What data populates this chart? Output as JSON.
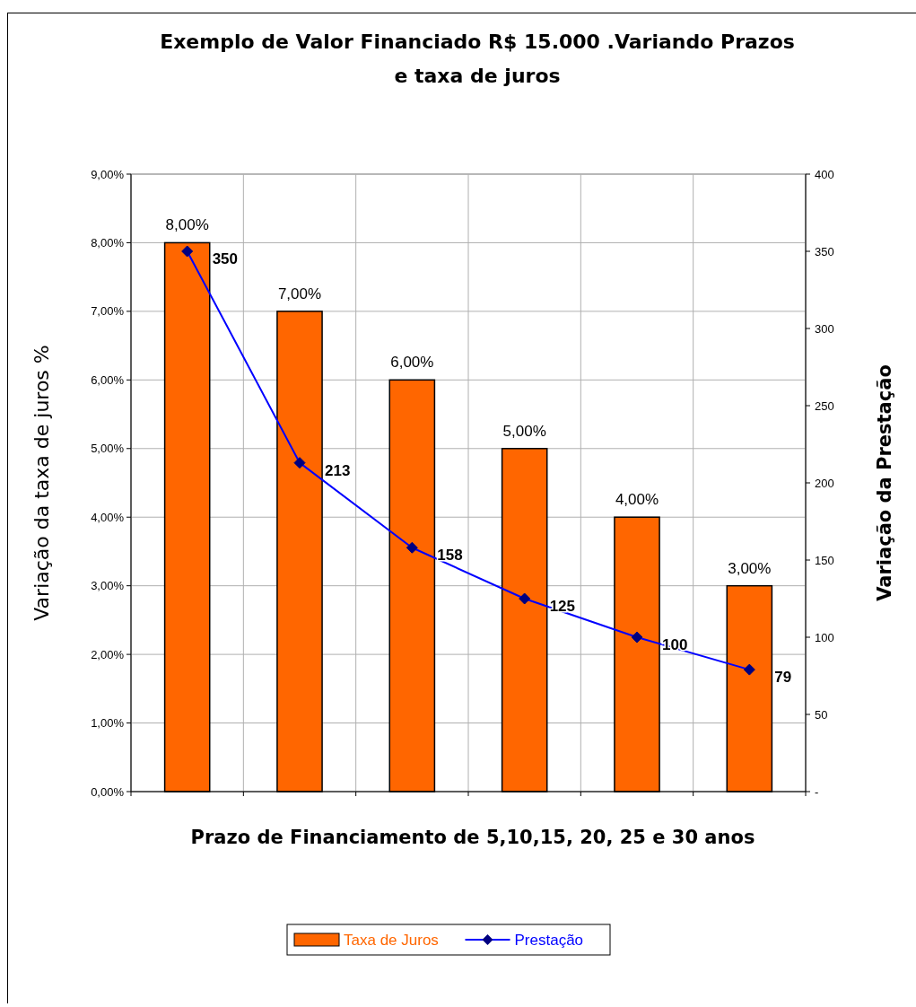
{
  "chart_data": {
    "type": "bar",
    "title": "Exemplo de Valor Financiado R$ 15.000 .Variando Prazos e taxa de juros",
    "xlabel": "Prazo de Financiamento de 5,10,15, 20, 25 e 30 anos",
    "ylabel": "Variação da taxa de juros %",
    "y2label": "Variação da Prestação",
    "categories": [
      null,
      null,
      null,
      null,
      null,
      null
    ],
    "series": [
      {
        "name": "Taxa de Juros",
        "color": "#ff6600",
        "values": [
          8,
          7,
          6,
          5,
          4,
          3
        ],
        "value_labels": [
          "8,00%",
          "7,00%",
          "6,00%",
          "5,00%",
          "4,00%",
          "3,00%"
        ]
      },
      {
        "name": "Prestação",
        "type": "line",
        "axis": "y2",
        "color": "#0000ff",
        "marker": "diamond",
        "values": [
          350,
          213,
          158,
          125,
          100,
          79
        ],
        "value_labels": [
          "350",
          "213",
          "158",
          "125",
          "100",
          "79"
        ]
      }
    ],
    "ylim": [
      0,
      9
    ],
    "yticks": [
      {
        "value": 0,
        "label": "0,00%"
      },
      {
        "value": 1,
        "label": "1,00%"
      },
      {
        "value": 2,
        "label": "2,00%"
      },
      {
        "value": 3,
        "label": "3,00%"
      },
      {
        "value": 4,
        "label": "4,00%"
      },
      {
        "value": 5,
        "label": "5,00%"
      },
      {
        "value": 6,
        "label": "6,00%"
      },
      {
        "value": 7,
        "label": "7,00%"
      },
      {
        "value": 8,
        "label": "8,00%"
      },
      {
        "value": 9,
        "label": "9,00%"
      }
    ],
    "y2lim": [
      0,
      400
    ],
    "y2ticks": [
      {
        "value": 0,
        "label": "-"
      },
      50,
      100,
      150,
      200,
      250,
      300,
      350,
      400
    ],
    "grid": true,
    "legend": "bottom"
  }
}
